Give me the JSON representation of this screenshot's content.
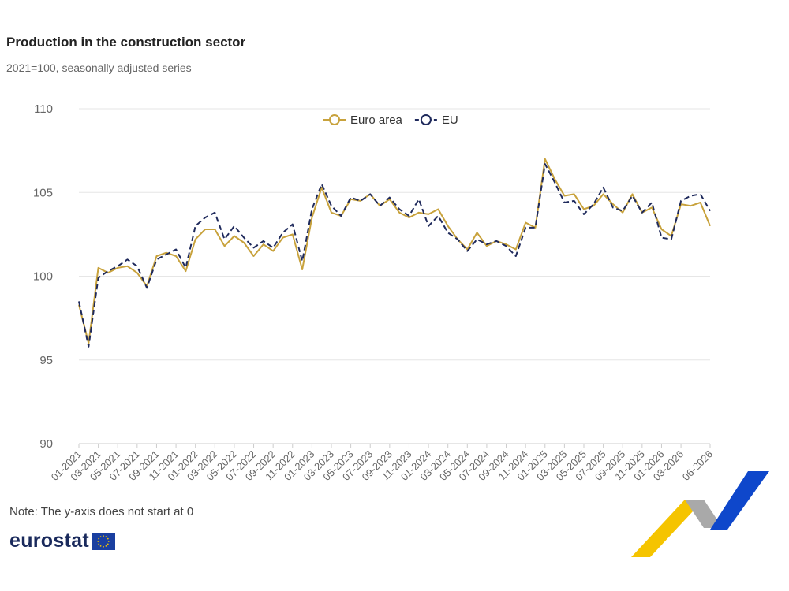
{
  "header": {
    "title": "Production in the construction sector",
    "subtitle": "2021=100, seasonally adjusted series"
  },
  "footer": {
    "note": "Note: The y-axis does not start at 0",
    "logo_text": "eurostat"
  },
  "colors": {
    "euro_area": "#c8a23c",
    "eu": "#1f2a5c",
    "grid": "#e6e6e6",
    "brand_yellow": "#f5c400",
    "brand_blue": "#0e47cb",
    "brand_grey": "#a9a9a9"
  },
  "chart_data": {
    "type": "line",
    "title": "Production in the construction sector",
    "subtitle": "2021=100, seasonally adjusted series",
    "ylim": [
      90,
      110
    ],
    "yticks": [
      90,
      95,
      100,
      105,
      110
    ],
    "grid": true,
    "legend_position": "top-center",
    "x": [
      "01-2021",
      "02-2021",
      "03-2021",
      "04-2021",
      "05-2021",
      "06-2021",
      "07-2021",
      "08-2021",
      "09-2021",
      "10-2021",
      "11-2021",
      "12-2021",
      "01-2022",
      "02-2022",
      "03-2022",
      "04-2022",
      "05-2022",
      "06-2022",
      "07-2022",
      "08-2022",
      "09-2022",
      "10-2022",
      "11-2022",
      "12-2022",
      "01-2023",
      "02-2023",
      "03-2023",
      "04-2023",
      "05-2023",
      "06-2023",
      "07-2023",
      "08-2023",
      "09-2023",
      "10-2023",
      "11-2023",
      "12-2023",
      "01-2024",
      "02-2024",
      "03-2024",
      "04-2024",
      "05-2024",
      "06-2024",
      "07-2024",
      "08-2024",
      "09-2024",
      "10-2024",
      "11-2024",
      "12-2024",
      "01-2025",
      "02-2025",
      "03-2025",
      "04-2025",
      "05-2025",
      "06-2025",
      "07-2025",
      "08-2025",
      "09-2025",
      "10-2025",
      "11-2025",
      "12-2025",
      "01-2026",
      "02-2026",
      "03-2026",
      "04-2026",
      "05-2026",
      "06-2026"
    ],
    "x_tick_labels": [
      "01-2021",
      "03-2021",
      "05-2021",
      "07-2021",
      "09-2021",
      "11-2021",
      "01-2022",
      "03-2022",
      "05-2022",
      "07-2022",
      "09-2022",
      "11-2022",
      "01-2023",
      "03-2023",
      "05-2023",
      "07-2023",
      "09-2023",
      "11-2023",
      "01-2024",
      "03-2024",
      "05-2024",
      "07-2024",
      "09-2024",
      "11-2024",
      "01-2025",
      "03-2025",
      "05-2025",
      "07-2025",
      "09-2025",
      "11-2025",
      "01-2026",
      "03-2026",
      "06-2026"
    ],
    "series": [
      {
        "name": "Euro area",
        "color": "#c8a23c",
        "dash": "solid",
        "values": [
          98.3,
          96.0,
          100.5,
          100.2,
          100.5,
          100.6,
          100.2,
          99.4,
          101.2,
          101.4,
          101.2,
          100.3,
          102.2,
          102.8,
          102.8,
          101.8,
          102.4,
          102.0,
          101.2,
          101.9,
          101.5,
          102.3,
          102.5,
          100.4,
          103.5,
          105.3,
          103.8,
          103.6,
          104.6,
          104.5,
          104.9,
          104.2,
          104.6,
          103.8,
          103.5,
          103.8,
          103.7,
          104.0,
          103.0,
          102.2,
          101.6,
          102.6,
          101.8,
          102.1,
          101.9,
          101.6,
          103.2,
          102.9,
          107.0,
          105.8,
          104.8,
          104.9,
          104.0,
          104.2,
          104.9,
          104.3,
          103.8,
          104.9,
          103.8,
          104.1,
          102.8,
          102.4,
          104.3,
          104.2,
          104.4,
          103.0
        ]
      },
      {
        "name": "EU",
        "color": "#1f2a5c",
        "dash": "dashed",
        "values": [
          98.5,
          95.8,
          99.9,
          100.3,
          100.6,
          101.0,
          100.6,
          99.3,
          101.0,
          101.3,
          101.6,
          100.5,
          103.0,
          103.5,
          103.8,
          102.2,
          103.0,
          102.3,
          101.7,
          102.1,
          101.7,
          102.6,
          103.1,
          100.9,
          104.0,
          105.5,
          104.2,
          103.6,
          104.7,
          104.5,
          104.9,
          104.2,
          104.7,
          104.0,
          103.6,
          104.6,
          103.0,
          103.6,
          102.6,
          102.2,
          101.5,
          102.2,
          101.9,
          102.1,
          101.8,
          101.2,
          102.9,
          102.9,
          106.7,
          105.6,
          104.4,
          104.5,
          103.7,
          104.3,
          105.3,
          104.1,
          103.9,
          104.8,
          103.8,
          104.4,
          102.3,
          102.2,
          104.5,
          104.8,
          104.9,
          103.9
        ]
      }
    ]
  }
}
